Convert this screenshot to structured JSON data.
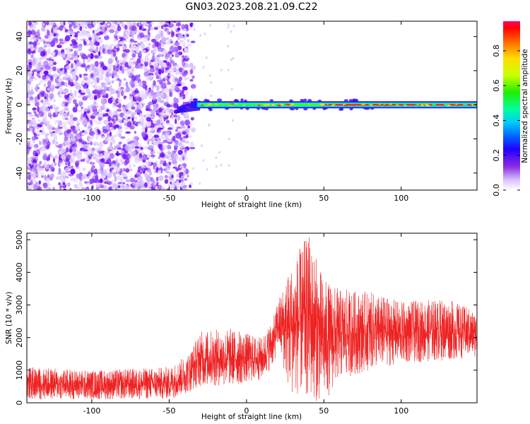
{
  "title": "GN03.2023.208.21.09.C22",
  "chart_data": [
    {
      "type": "heatmap",
      "xlabel": "Height of straight line (km)",
      "ylabel": "Frequency (Hz)",
      "xlim": [
        -142,
        149
      ],
      "ylim": [
        -50,
        49
      ],
      "xticks": [
        -100,
        -50,
        0,
        50,
        100
      ],
      "yticks": [
        -40,
        -20,
        0,
        20,
        40
      ],
      "colorbar": {
        "label": "Normalized spectral amplitude",
        "range": [
          0,
          0.97
        ],
        "ticks": [
          0.0,
          0.2,
          0.4,
          0.6,
          0.8
        ]
      },
      "features": {
        "noise_region_x": [
          -142,
          -38
        ],
        "signal_start_x": -45,
        "signal_line_frequency": 0
      }
    },
    {
      "type": "line",
      "xlabel": "Height of straight line (km)",
      "ylabel": "SNR (10 * v/v)",
      "xlim": [
        -142,
        149
      ],
      "ylim": [
        0,
        5200
      ],
      "xticks": [
        -100,
        -50,
        0,
        50,
        100
      ],
      "yticks": [
        0,
        1000,
        2000,
        3000,
        4000,
        5000
      ],
      "series": [
        {
          "color": "#ee2222",
          "envelope": [
            {
              "x": -142,
              "low": 100,
              "high": 1100
            },
            {
              "x": -100,
              "low": 100,
              "high": 1000
            },
            {
              "x": -50,
              "low": 100,
              "high": 1100
            },
            {
              "x": -38,
              "low": 300,
              "high": 1500
            },
            {
              "x": -30,
              "low": 500,
              "high": 2200
            },
            {
              "x": -10,
              "low": 500,
              "high": 2300
            },
            {
              "x": 10,
              "low": 700,
              "high": 2000
            },
            {
              "x": 18,
              "low": 1200,
              "high": 2700
            },
            {
              "x": 20,
              "low": 1700,
              "high": 3100
            },
            {
              "x": 28,
              "low": 300,
              "high": 4200
            },
            {
              "x": 40,
              "low": 100,
              "high": 5200
            },
            {
              "x": 50,
              "low": 0,
              "high": 3800
            },
            {
              "x": 60,
              "low": 700,
              "high": 3500
            },
            {
              "x": 80,
              "low": 1000,
              "high": 3400
            },
            {
              "x": 100,
              "low": 1200,
              "high": 3100
            },
            {
              "x": 130,
              "low": 1300,
              "high": 3200
            },
            {
              "x": 149,
              "low": 1400,
              "high": 2800
            }
          ]
        }
      ]
    }
  ]
}
